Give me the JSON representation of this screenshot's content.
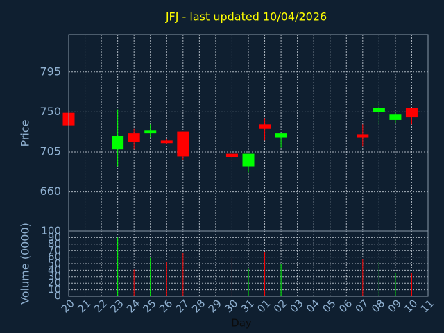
{
  "chart_data": {
    "type": "candlestick",
    "title": "JFJ - last updated 10/04/2026",
    "xlabel": "Day",
    "ylabel": "Price",
    "categories": [
      "20",
      "21",
      "22",
      "23",
      "24",
      "25",
      "26",
      "27",
      "28",
      "29",
      "30",
      "31",
      "01",
      "02",
      "03",
      "04",
      "05",
      "06",
      "07",
      "08",
      "09",
      "10",
      "11"
    ],
    "open": [
      749,
      null,
      null,
      708,
      726,
      726,
      718,
      728,
      null,
      null,
      703,
      689,
      736,
      721,
      null,
      null,
      null,
      null,
      725,
      750,
      741,
      755,
      null
    ],
    "high": [
      749,
      null,
      null,
      753,
      731,
      736,
      720,
      728,
      null,
      null,
      703,
      703,
      743,
      726,
      null,
      null,
      null,
      null,
      736,
      761,
      749,
      755,
      null
    ],
    "low": [
      735,
      null,
      null,
      689,
      708,
      721,
      714,
      696,
      null,
      null,
      695,
      682,
      718,
      710,
      null,
      null,
      null,
      null,
      711,
      736,
      737,
      736,
      null
    ],
    "close": [
      735,
      null,
      null,
      723,
      716,
      729,
      715,
      700,
      null,
      null,
      699,
      703,
      731,
      726,
      null,
      null,
      null,
      null,
      721,
      755,
      747,
      744,
      null
    ],
    "up_color": "#00ff00",
    "down_color": "#ff0000",
    "title_color": "#ffff00",
    "ylim": [
      616,
      837
    ],
    "yticks": [
      660,
      705,
      750,
      795
    ],
    "grid": true,
    "volume": {
      "ylabel": "Volume (0000)",
      "values": [
        null,
        null,
        null,
        90,
        41,
        59,
        53,
        66,
        null,
        null,
        59,
        42,
        68,
        49,
        null,
        null,
        null,
        null,
        57,
        52,
        36,
        35,
        null
      ],
      "ylim": [
        0,
        100
      ],
      "yticks": [
        0,
        10,
        20,
        30,
        40,
        50,
        60,
        70,
        80,
        90,
        100
      ]
    }
  }
}
